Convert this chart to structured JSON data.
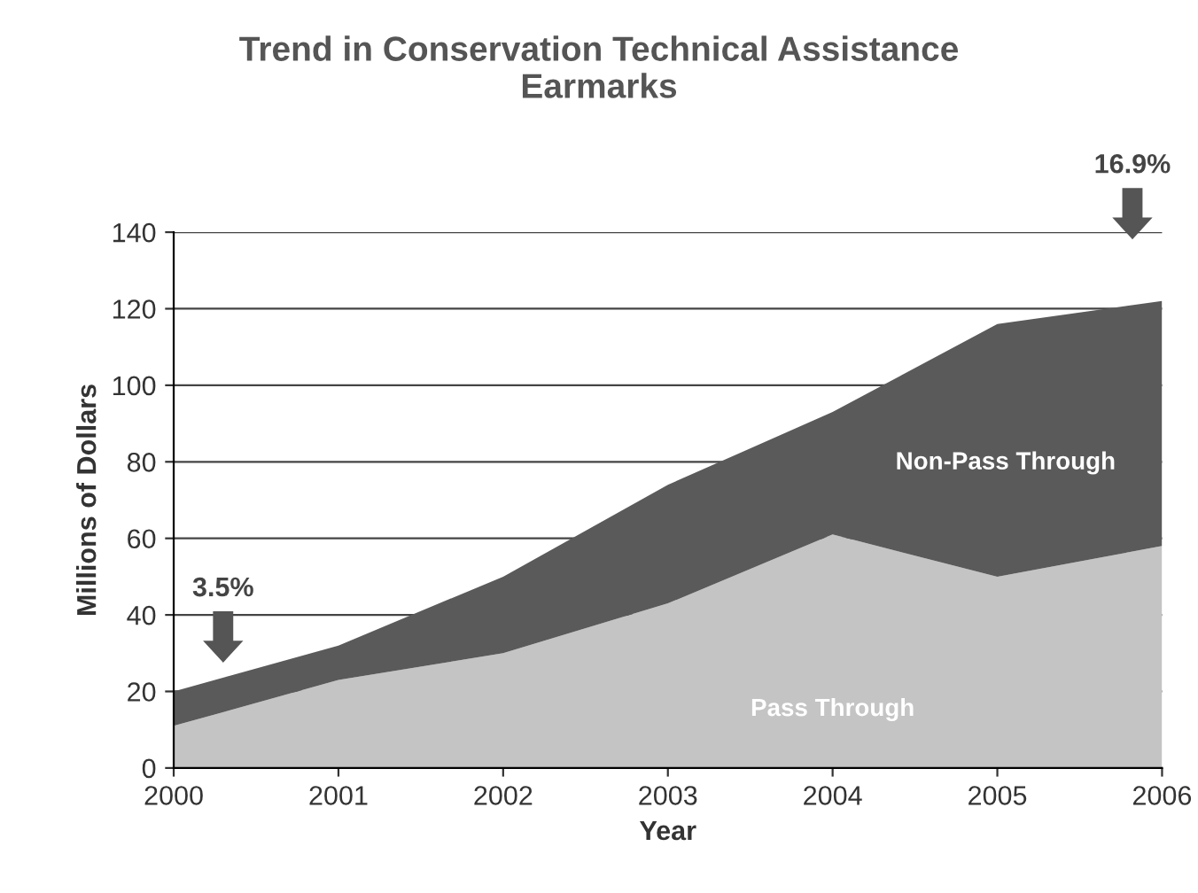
{
  "chart_data": {
    "type": "area",
    "stacked": true,
    "title": "Trend in Conservation Technical Assistance\nEarmarks",
    "xlabel": "Year",
    "ylabel": "Millions of Dollars",
    "x": [
      2000,
      2001,
      2002,
      2003,
      2004,
      2005,
      2006
    ],
    "series": [
      {
        "name": "Pass Through",
        "color": "#c4c4c4",
        "values": [
          11,
          23,
          30,
          43,
          61,
          50,
          58
        ]
      },
      {
        "name": "Non-Pass Through",
        "color": "#5a5a5a",
        "values": [
          9,
          9,
          20,
          31,
          32,
          66,
          64
        ]
      }
    ],
    "xlim": [
      2000,
      2006
    ],
    "xticks": [
      2000,
      2001,
      2002,
      2003,
      2004,
      2005,
      2006
    ],
    "ylim": [
      0,
      140
    ],
    "yticks": [
      0,
      20,
      40,
      60,
      80,
      100,
      120,
      140
    ],
    "grid": "y",
    "legend": false,
    "annotations": [
      "3.5%",
      "16.9%"
    ]
  }
}
